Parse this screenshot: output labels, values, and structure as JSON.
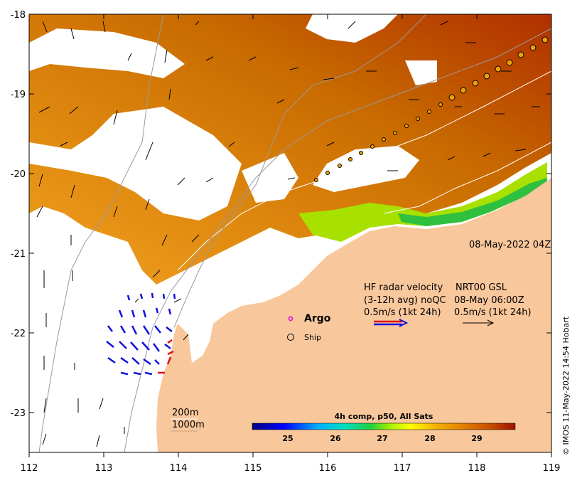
{
  "map": {
    "timestamp": "08-May-2022 04Z",
    "credit": "© IMOS 11-May-2022 14:54 Hobart",
    "axes": {
      "x_ticks": [
        "112",
        "113",
        "114",
        "115",
        "116",
        "117",
        "118",
        "119"
      ],
      "y_ticks": [
        "-18",
        "-19",
        "-20",
        "-21",
        "-22",
        "-23"
      ]
    },
    "legend": {
      "hf_title_1": "HF radar velocity",
      "hf_title_2": "(3-12h avg) noQC",
      "hf_scale": "0.5m/s (1kt 24h)",
      "nrt_title_1": "NRT00 GSL",
      "nrt_title_2": "08-May 06:00Z",
      "nrt_scale": "0.5m/s (1kt 24h)",
      "argo_label": "Argo",
      "ship_label": "Ship"
    },
    "isobaths": {
      "label_200": "200m",
      "label_1000": "1000m"
    },
    "colorbar": {
      "title": "4h comp, p50, All Sats",
      "ticks": [
        "25",
        "26",
        "27",
        "28",
        "29"
      ]
    },
    "colors": {
      "land": "#f9c79c",
      "hf_radar": "#1010e0",
      "hf_radar_alt": "#e01010",
      "sst_warm": "#c86a00",
      "sst_cool": "#30d040"
    }
  }
}
